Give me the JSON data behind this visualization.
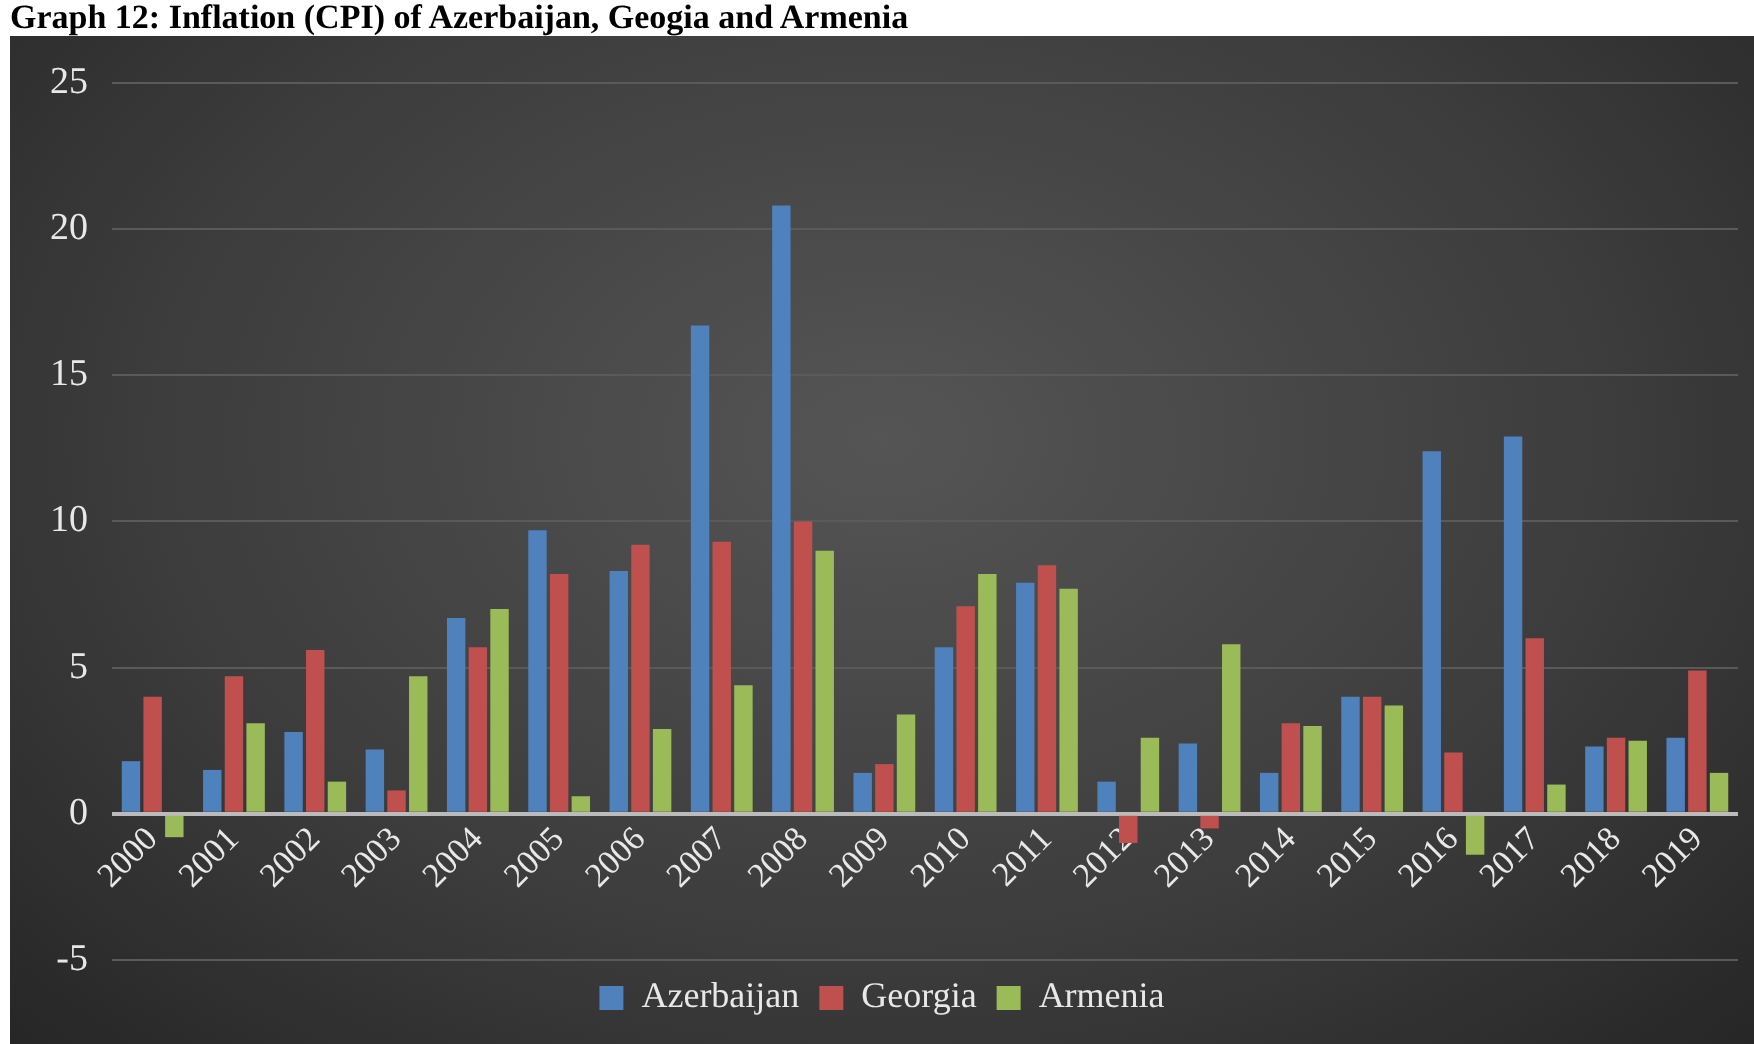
{
  "chart_data": {
    "type": "bar",
    "title": "Graph 12: Inflation (CPI) of Azerbaijan, Geogia and Armenia",
    "categories": [
      "2000",
      "2001",
      "2002",
      "2003",
      "2004",
      "2005",
      "2006",
      "2007",
      "2008",
      "2009",
      "2010",
      "2011",
      "2012",
      "2013",
      "2014",
      "2015",
      "2016",
      "2017",
      "2018",
      "2019"
    ],
    "series": [
      {
        "name": "Azerbaijan",
        "color": "#4f81bd",
        "values": [
          1.8,
          1.5,
          2.8,
          2.2,
          6.7,
          9.7,
          8.3,
          16.7,
          20.8,
          1.4,
          5.7,
          7.9,
          1.1,
          2.4,
          1.4,
          4.0,
          12.4,
          12.9,
          2.3,
          2.6
        ]
      },
      {
        "name": "Georgia",
        "color": "#c0504d",
        "values": [
          4.0,
          4.7,
          5.6,
          0.8,
          5.7,
          8.2,
          9.2,
          9.3,
          10.0,
          1.7,
          7.1,
          8.5,
          -1.0,
          -0.5,
          3.1,
          4.0,
          2.1,
          6.0,
          2.6,
          4.9
        ]
      },
      {
        "name": "Armenia",
        "color": "#9bbb59",
        "values": [
          -0.8,
          3.1,
          1.1,
          4.7,
          7.0,
          0.6,
          2.9,
          4.4,
          9.0,
          3.4,
          8.2,
          7.7,
          2.6,
          5.8,
          3.0,
          3.7,
          -1.4,
          1.0,
          2.5,
          1.4
        ]
      }
    ],
    "ylim": [
      -5,
      25
    ],
    "yticks": [
      -5,
      0,
      5,
      10,
      15,
      20,
      25
    ],
    "grid": "y",
    "legend": "bottom"
  }
}
